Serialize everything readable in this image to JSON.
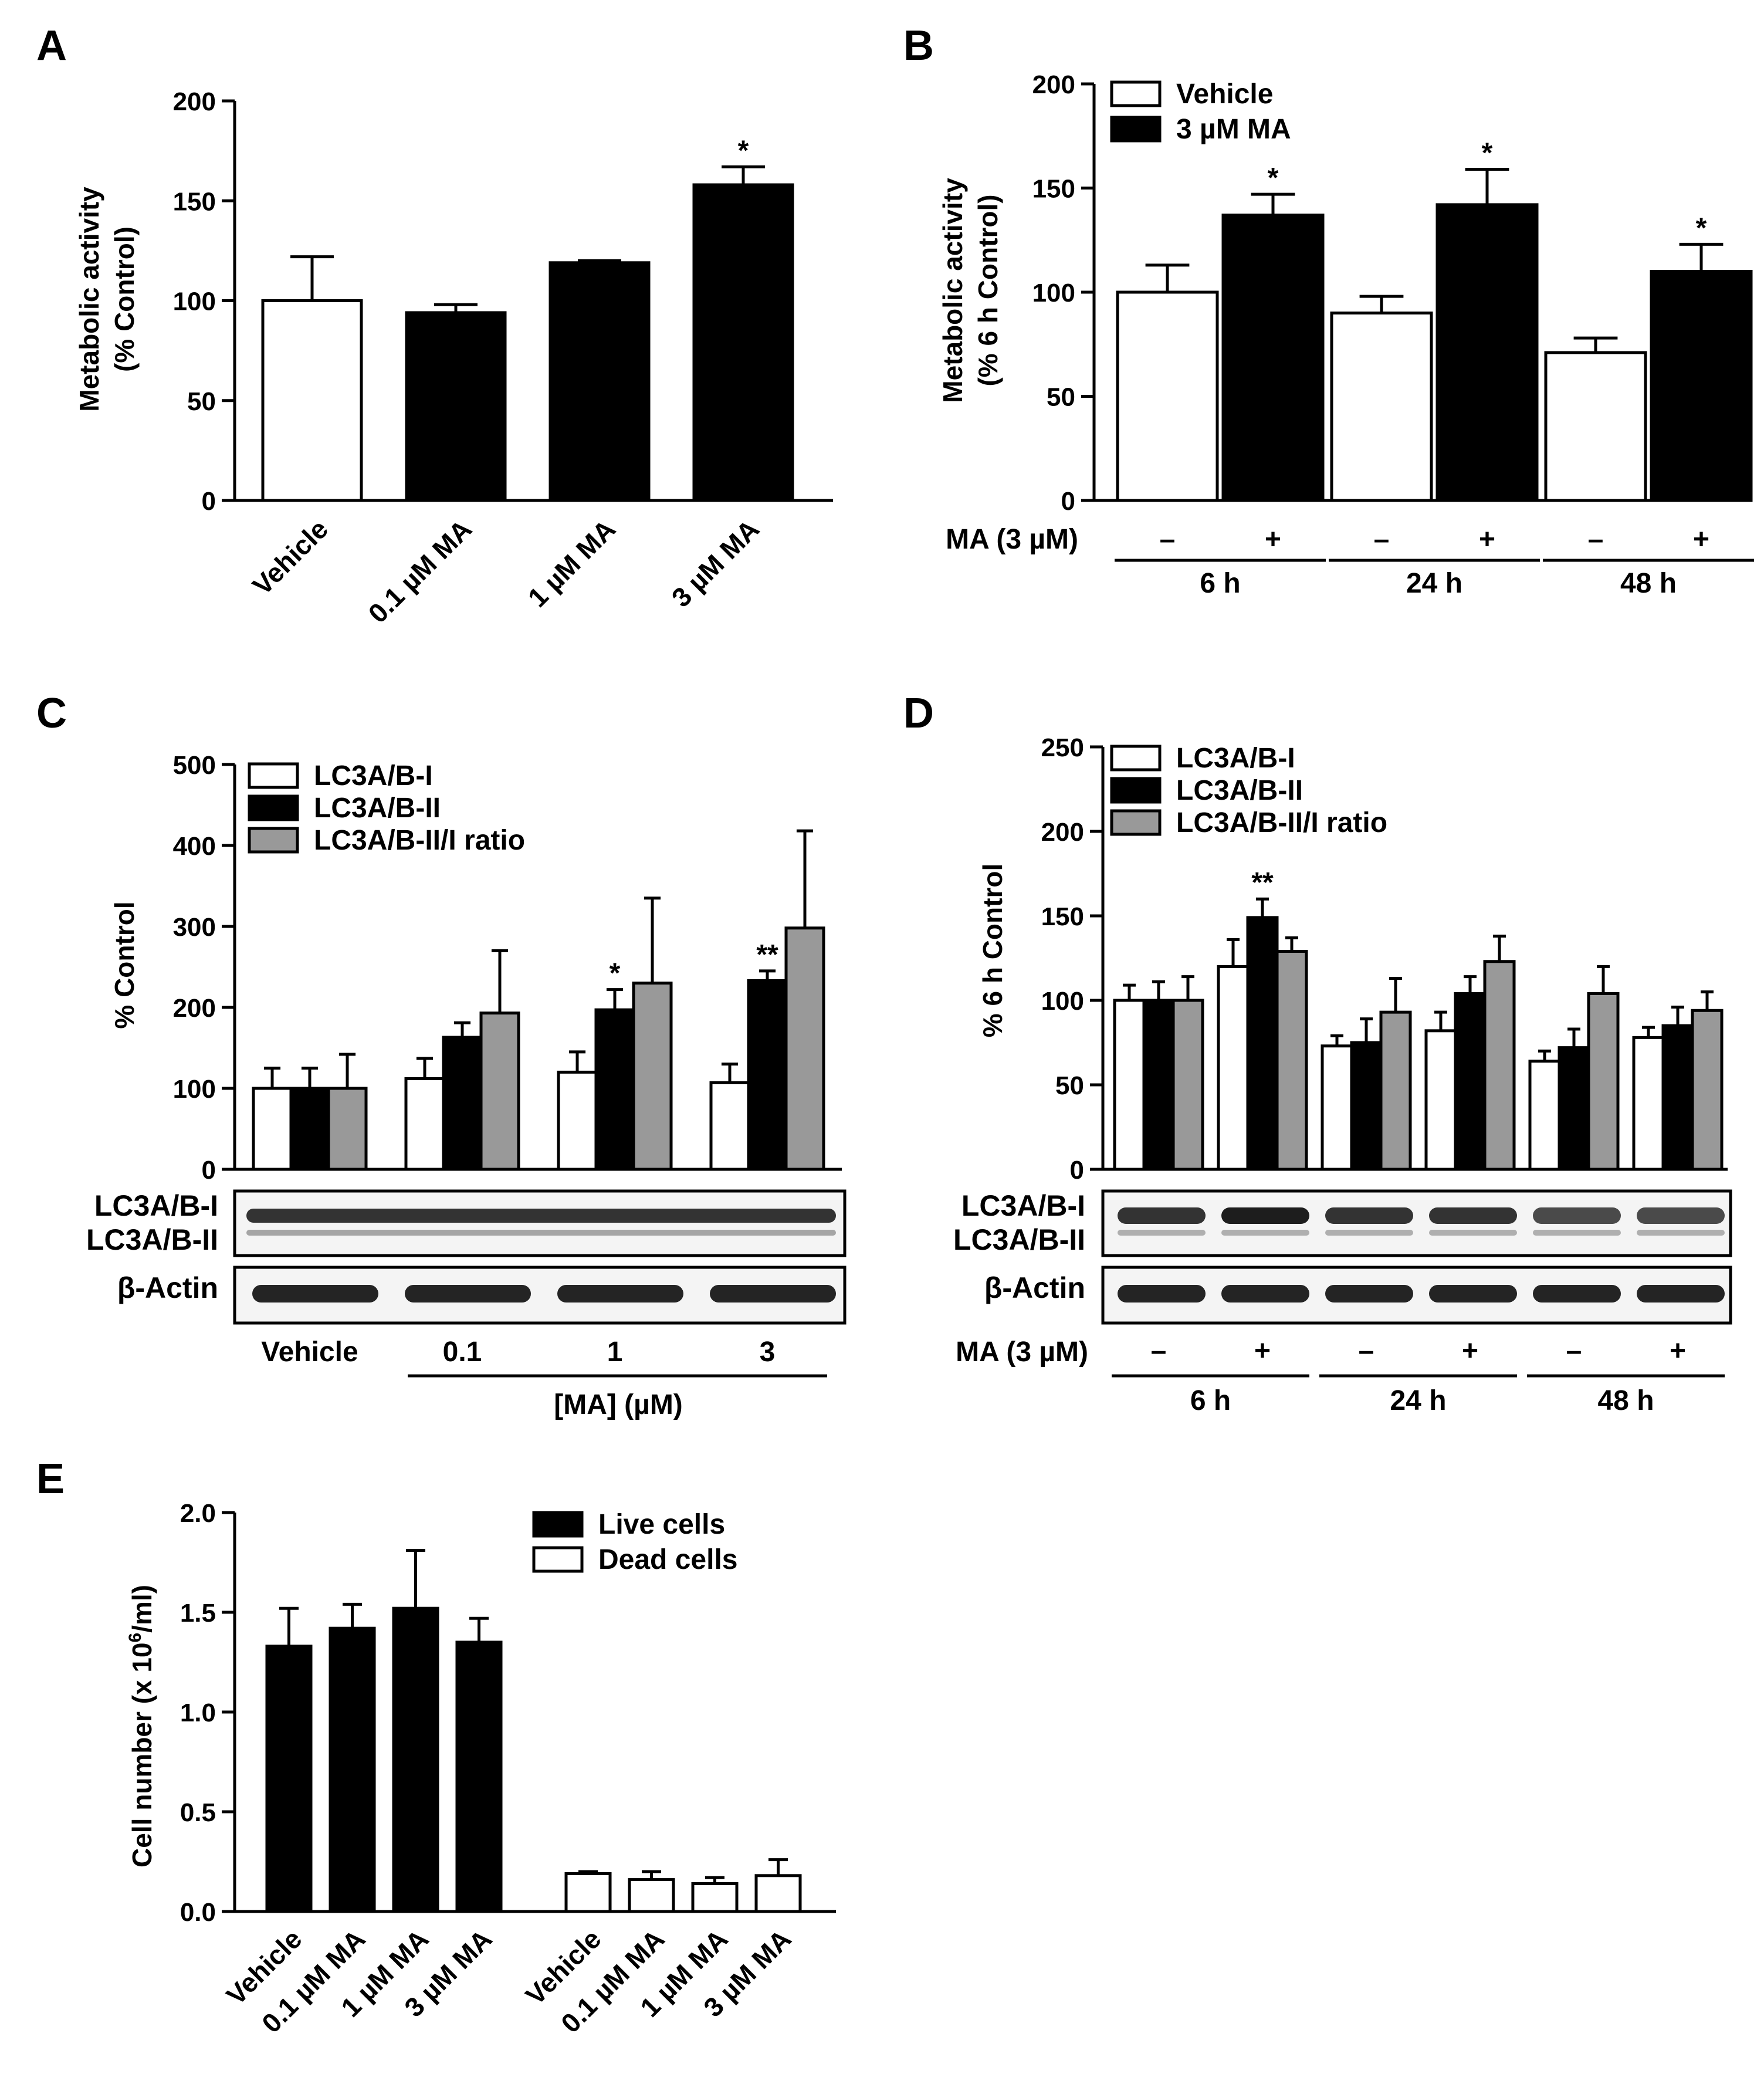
{
  "chart_data": [
    {
      "panel": "A",
      "type": "bar",
      "ylabel_line1": "Metabolic activity",
      "ylabel_line2": "(% Control)",
      "ylim": [
        0,
        200
      ],
      "yticks": [
        "0",
        "50",
        "100",
        "150",
        "200"
      ],
      "categories": [
        "Vehicle",
        "0.1 µM MA",
        "1 µM MA",
        "3 µM MA"
      ],
      "values": [
        100,
        94,
        119,
        158
      ],
      "errors": [
        22,
        4,
        1,
        9
      ],
      "fills": [
        "#ffffff",
        "#000000",
        "#000000",
        "#000000"
      ],
      "annotations": [
        "",
        "",
        "",
        "*"
      ]
    },
    {
      "panel": "B",
      "type": "bar",
      "ylabel_line1": "Metabolic activity",
      "ylabel_line2": "(% 6 h Control)",
      "ylim": [
        0,
        200
      ],
      "yticks": [
        "0",
        "50",
        "100",
        "150",
        "200"
      ],
      "legend": [
        "Vehicle",
        "3 µM MA"
      ],
      "row_label": "MA (3 µM)",
      "signs": [
        "–",
        "+",
        "–",
        "+",
        "–",
        "+"
      ],
      "groups": [
        "6 h",
        "24 h",
        "48 h"
      ],
      "values": [
        100,
        137,
        90,
        142,
        71,
        110
      ],
      "errors": [
        13,
        10,
        8,
        17,
        7,
        13
      ],
      "fills": [
        "#ffffff",
        "#000000",
        "#ffffff",
        "#000000",
        "#ffffff",
        "#000000"
      ],
      "annotations": [
        "",
        "*",
        "",
        "*",
        "",
        "*"
      ]
    },
    {
      "panel": "C",
      "type": "bar",
      "ylabel": "% Control",
      "ylim": [
        0,
        500
      ],
      "yticks": [
        "0",
        "100",
        "200",
        "300",
        "400",
        "500"
      ],
      "legend": [
        "LC3A/B-I",
        "LC3A/B-II",
        "LC3A/B-II/I ratio"
      ],
      "categories": [
        "Vehicle",
        "0.1",
        "1",
        "3"
      ],
      "x_group_label": "[MA] (µM)",
      "series": [
        {
          "name": "LC3A/B-I",
          "values": [
            100,
            112,
            120,
            107
          ],
          "errors": [
            25,
            25,
            25,
            23
          ]
        },
        {
          "name": "LC3A/B-II",
          "values": [
            100,
            163,
            197,
            233
          ],
          "errors": [
            25,
            18,
            25,
            12
          ]
        },
        {
          "name": "LC3A/B-II/I ratio",
          "values": [
            100,
            193,
            230,
            298
          ],
          "errors": [
            42,
            77,
            105,
            120
          ]
        }
      ],
      "annotations": [
        "",
        "",
        "*",
        "**"
      ],
      "blot_labels": [
        "LC3A/B-I",
        "LC3A/B-II",
        "β-Actin"
      ]
    },
    {
      "panel": "D",
      "type": "bar",
      "ylabel": "% 6 h Control",
      "ylim": [
        0,
        250
      ],
      "yticks": [
        "0",
        "50",
        "100",
        "150",
        "200",
        "250"
      ],
      "legend": [
        "LC3A/B-I",
        "LC3A/B-II",
        "LC3A/B-II/I ratio"
      ],
      "row_label": "MA (3 µM)",
      "signs": [
        "–",
        "+",
        "–",
        "+",
        "–",
        "+"
      ],
      "groups": [
        "6 h",
        "24 h",
        "48 h"
      ],
      "series": [
        {
          "name": "LC3A/B-I",
          "values": [
            100,
            120,
            73,
            82,
            64,
            78
          ],
          "errors": [
            9,
            16,
            6,
            11,
            6,
            6
          ]
        },
        {
          "name": "LC3A/B-II",
          "values": [
            100,
            149,
            75,
            104,
            72,
            85
          ],
          "errors": [
            11,
            11,
            14,
            10,
            11,
            11
          ]
        },
        {
          "name": "LC3A/B-II/I ratio",
          "values": [
            100,
            129,
            93,
            123,
            104,
            94
          ],
          "errors": [
            14,
            8,
            20,
            15,
            16,
            11
          ]
        }
      ],
      "annotations": [
        "",
        "**",
        "",
        "",
        "",
        ""
      ],
      "blot_labels": [
        "LC3A/B-I",
        "LC3A/B-II",
        "β-Actin"
      ]
    },
    {
      "panel": "E",
      "type": "bar",
      "ylabel": "Cell number (x 10",
      "ylabel_sup": "6",
      "ylabel_end": "/ml)",
      "ylim": [
        0,
        2.0
      ],
      "yticks": [
        "0.0",
        "0.5",
        "1.0",
        "1.5",
        "2.0"
      ],
      "legend": [
        "Live cells",
        "Dead cells"
      ],
      "categories": [
        "Vehicle",
        "0.1 µM MA",
        "1 µM MA",
        "3 µM MA",
        "Vehicle",
        "0.1 µM MA",
        "1 µM MA",
        "3 µM MA"
      ],
      "values": [
        1.33,
        1.42,
        1.52,
        1.35,
        0.19,
        0.16,
        0.14,
        0.18
      ],
      "errors": [
        0.19,
        0.12,
        0.29,
        0.12,
        0.01,
        0.04,
        0.03,
        0.08
      ],
      "fills": [
        "#000000",
        "#000000",
        "#000000",
        "#000000",
        "#ffffff",
        "#ffffff",
        "#ffffff",
        "#ffffff"
      ]
    }
  ],
  "panels": {
    "a": "A",
    "b": "B",
    "c": "C",
    "d": "D",
    "e": "E"
  }
}
